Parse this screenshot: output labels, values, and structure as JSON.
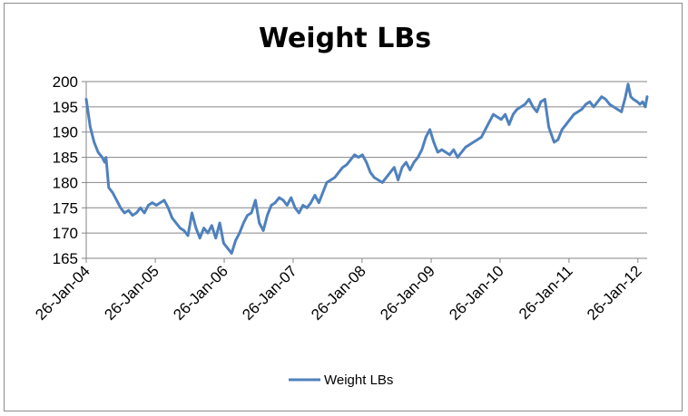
{
  "chart_data": {
    "type": "line",
    "title": "Weight LBs",
    "xlabel": "",
    "ylabel": "",
    "ylim": [
      165,
      200
    ],
    "yticks": [
      165,
      170,
      175,
      180,
      185,
      190,
      195,
      200
    ],
    "xlim": [
      "2004-01-26",
      "2012-03-15"
    ],
    "xtick_labels": [
      "26-Jan-04",
      "26-Jan-05",
      "26-Jan-06",
      "26-Jan-07",
      "26-Jan-08",
      "26-Jan-09",
      "26-Jan-10",
      "26-Jan-11",
      "26-Jan-12"
    ],
    "xtick_dates": [
      "2004-01-26",
      "2005-01-26",
      "2006-01-26",
      "2007-01-26",
      "2008-01-26",
      "2009-01-26",
      "2010-01-26",
      "2011-01-26",
      "2012-01-26"
    ],
    "grid": "horizontal",
    "legend_position": "bottom",
    "colors": {
      "series": "#4f81bd",
      "grid": "#868686",
      "axis": "#868686"
    },
    "series": [
      {
        "name": "Weight LBs",
        "points": [
          [
            "2004-01-26",
            196.5
          ],
          [
            "2004-02-16",
            191
          ],
          [
            "2004-03-08",
            188
          ],
          [
            "2004-03-29",
            186
          ],
          [
            "2004-04-19",
            185
          ],
          [
            "2004-05-03",
            184
          ],
          [
            "2004-05-10",
            185
          ],
          [
            "2004-05-24",
            179
          ],
          [
            "2004-06-14",
            178
          ],
          [
            "2004-07-05",
            176.5
          ],
          [
            "2004-07-26",
            175
          ],
          [
            "2004-08-16",
            174
          ],
          [
            "2004-09-06",
            174.5
          ],
          [
            "2004-09-27",
            173.5
          ],
          [
            "2004-10-18",
            174
          ],
          [
            "2004-11-08",
            175
          ],
          [
            "2004-11-29",
            174
          ],
          [
            "2004-12-20",
            175.5
          ],
          [
            "2005-01-10",
            176
          ],
          [
            "2005-01-31",
            175.5
          ],
          [
            "2005-02-21",
            176
          ],
          [
            "2005-03-14",
            176.5
          ],
          [
            "2005-04-04",
            175
          ],
          [
            "2005-04-25",
            173
          ],
          [
            "2005-05-16",
            172
          ],
          [
            "2005-06-06",
            171
          ],
          [
            "2005-06-27",
            170.5
          ],
          [
            "2005-07-18",
            169.5
          ],
          [
            "2005-08-08",
            174
          ],
          [
            "2005-08-29",
            171
          ],
          [
            "2005-09-19",
            169
          ],
          [
            "2005-10-10",
            171
          ],
          [
            "2005-10-31",
            170
          ],
          [
            "2005-11-21",
            171.5
          ],
          [
            "2005-12-12",
            169
          ],
          [
            "2006-01-02",
            172
          ],
          [
            "2006-01-23",
            168
          ],
          [
            "2006-02-13",
            167
          ],
          [
            "2006-03-06",
            166
          ],
          [
            "2006-03-27",
            168.5
          ],
          [
            "2006-04-17",
            170
          ],
          [
            "2006-05-08",
            172
          ],
          [
            "2006-05-29",
            173.5
          ],
          [
            "2006-06-19",
            174
          ],
          [
            "2006-07-10",
            176.5
          ],
          [
            "2006-07-31",
            172
          ],
          [
            "2006-08-21",
            170.5
          ],
          [
            "2006-09-11",
            173.5
          ],
          [
            "2006-10-02",
            175.5
          ],
          [
            "2006-10-23",
            176
          ],
          [
            "2006-11-13",
            177
          ],
          [
            "2006-12-04",
            176.5
          ],
          [
            "2006-12-25",
            175.5
          ],
          [
            "2007-01-15",
            177
          ],
          [
            "2007-02-05",
            175
          ],
          [
            "2007-02-26",
            174
          ],
          [
            "2007-03-19",
            175.5
          ],
          [
            "2007-04-09",
            175
          ],
          [
            "2007-04-30",
            176
          ],
          [
            "2007-05-21",
            177.5
          ],
          [
            "2007-06-11",
            176
          ],
          [
            "2007-07-02",
            178
          ],
          [
            "2007-07-23",
            180
          ],
          [
            "2007-08-13",
            180.5
          ],
          [
            "2007-09-03",
            181
          ],
          [
            "2007-09-24",
            182
          ],
          [
            "2007-10-15",
            183
          ],
          [
            "2007-11-05",
            183.5
          ],
          [
            "2007-11-26",
            184.5
          ],
          [
            "2007-12-17",
            185.5
          ],
          [
            "2008-01-07",
            185
          ],
          [
            "2008-01-28",
            185.5
          ],
          [
            "2008-02-18",
            184
          ],
          [
            "2008-03-10",
            182
          ],
          [
            "2008-03-31",
            181
          ],
          [
            "2008-04-21",
            180.5
          ],
          [
            "2008-05-12",
            180
          ],
          [
            "2008-06-02",
            181
          ],
          [
            "2008-06-23",
            182
          ],
          [
            "2008-07-14",
            183
          ],
          [
            "2008-08-04",
            180.5
          ],
          [
            "2008-08-25",
            183
          ],
          [
            "2008-09-15",
            184
          ],
          [
            "2008-10-06",
            182.5
          ],
          [
            "2008-10-27",
            184
          ],
          [
            "2008-11-17",
            185
          ],
          [
            "2008-12-08",
            186.5
          ],
          [
            "2008-12-29",
            189
          ],
          [
            "2009-01-19",
            190.5
          ],
          [
            "2009-02-09",
            188
          ],
          [
            "2009-03-02",
            186
          ],
          [
            "2009-03-23",
            186.5
          ],
          [
            "2009-04-13",
            186
          ],
          [
            "2009-05-04",
            185.5
          ],
          [
            "2009-05-25",
            186.5
          ],
          [
            "2009-06-15",
            185
          ],
          [
            "2009-07-06",
            186
          ],
          [
            "2009-07-27",
            187
          ],
          [
            "2009-08-17",
            187.5
          ],
          [
            "2009-09-07",
            188
          ],
          [
            "2009-09-28",
            188.5
          ],
          [
            "2009-10-19",
            189
          ],
          [
            "2009-11-09",
            190.5
          ],
          [
            "2009-11-30",
            192
          ],
          [
            "2009-12-21",
            193.5
          ],
          [
            "2010-01-11",
            193
          ],
          [
            "2010-02-01",
            192.5
          ],
          [
            "2010-02-22",
            193.5
          ],
          [
            "2010-03-15",
            191.5
          ],
          [
            "2010-04-05",
            193.5
          ],
          [
            "2010-04-26",
            194.5
          ],
          [
            "2010-05-17",
            195
          ],
          [
            "2010-06-07",
            195.5
          ],
          [
            "2010-06-28",
            196.5
          ],
          [
            "2010-07-19",
            195
          ],
          [
            "2010-08-09",
            194
          ],
          [
            "2010-08-30",
            196
          ],
          [
            "2010-09-20",
            196.5
          ],
          [
            "2010-10-11",
            191
          ],
          [
            "2010-10-25",
            189.5
          ],
          [
            "2010-11-08",
            188
          ],
          [
            "2010-11-29",
            188.5
          ],
          [
            "2010-12-20",
            190.5
          ],
          [
            "2011-01-10",
            191.5
          ],
          [
            "2011-01-31",
            192.5
          ],
          [
            "2011-02-21",
            193.5
          ],
          [
            "2011-03-14",
            194
          ],
          [
            "2011-04-04",
            194.5
          ],
          [
            "2011-04-25",
            195.5
          ],
          [
            "2011-05-16",
            196
          ],
          [
            "2011-06-06",
            195
          ],
          [
            "2011-06-27",
            196
          ],
          [
            "2011-07-18",
            197
          ],
          [
            "2011-08-08",
            196.5
          ],
          [
            "2011-08-29",
            195.5
          ],
          [
            "2011-09-19",
            195
          ],
          [
            "2011-10-10",
            194.5
          ],
          [
            "2011-10-31",
            194
          ],
          [
            "2011-11-21",
            197
          ],
          [
            "2011-12-05",
            199.5
          ],
          [
            "2011-12-19",
            197
          ],
          [
            "2012-01-02",
            196.5
          ],
          [
            "2012-01-23",
            196
          ],
          [
            "2012-02-06",
            195.5
          ],
          [
            "2012-02-20",
            196
          ],
          [
            "2012-03-05",
            195
          ],
          [
            "2012-03-15",
            197
          ]
        ]
      }
    ]
  }
}
